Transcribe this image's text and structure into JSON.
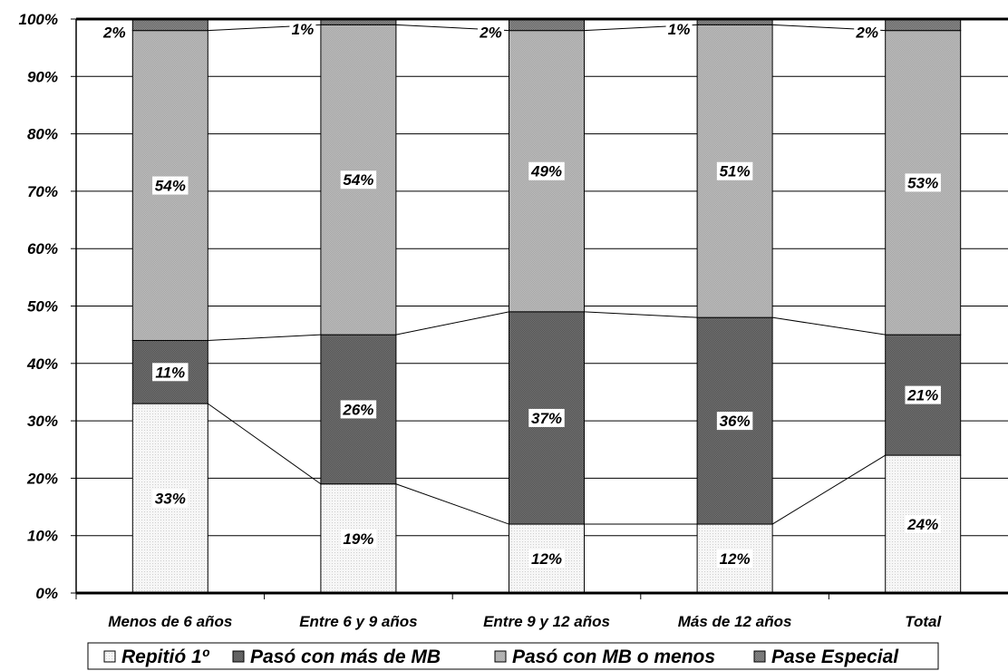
{
  "chart_data": {
    "type": "bar",
    "stacked": true,
    "percent": true,
    "categories": [
      "Menos de 6 años",
      "Entre 6 y 9 años",
      "Entre 9 y 12 años",
      "Más de 12 años",
      "Total"
    ],
    "series": [
      {
        "name": "Repitió 1º",
        "values": [
          33,
          19,
          12,
          12,
          24
        ],
        "labels": [
          "33%",
          "19%",
          "12%",
          "12%",
          "24%"
        ],
        "color": "#f4f4f4"
      },
      {
        "name": "Pasó con más de MB",
        "values": [
          11,
          26,
          37,
          36,
          21
        ],
        "labels": [
          "11%",
          "26%",
          "37%",
          "36%",
          "21%"
        ],
        "color": "#6b6b6b"
      },
      {
        "name": "Pasó con MB o menos",
        "values": [
          54,
          54,
          49,
          51,
          53
        ],
        "labels": [
          "54%",
          "54%",
          "49%",
          "51%",
          "53%"
        ],
        "color": "#b4b4b4"
      },
      {
        "name": "Pase Especial",
        "values": [
          2,
          1,
          2,
          1,
          2
        ],
        "labels": [
          "2%",
          "1%",
          "2%",
          "1%",
          "2%"
        ],
        "color": "#7e7e7e"
      }
    ],
    "ylim": [
      0,
      100
    ],
    "yticks": [
      "0%",
      "10%",
      "20%",
      "30%",
      "40%",
      "50%",
      "60%",
      "70%",
      "80%",
      "90%",
      "100%"
    ],
    "grid": true,
    "legend": "bottom"
  }
}
